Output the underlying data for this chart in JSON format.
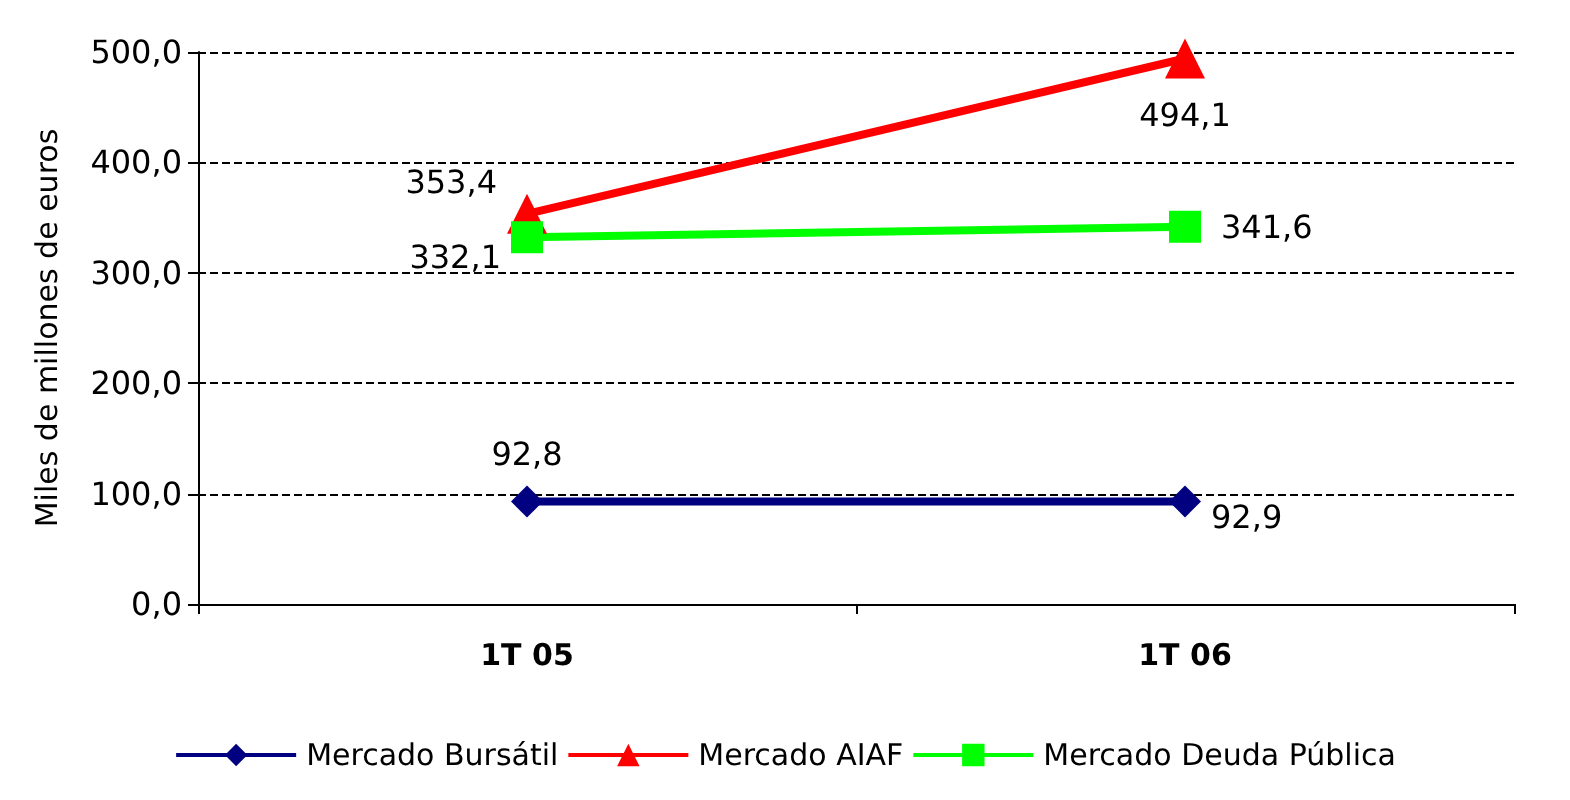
{
  "chart_data": {
    "type": "line",
    "ylabel": "Miles de millones de euros",
    "categories": [
      "1T 05",
      "1T 06"
    ],
    "ylim": [
      0,
      500
    ],
    "yticks": [
      {
        "value": 0,
        "label": "0,0"
      },
      {
        "value": 100,
        "label": "100,0"
      },
      {
        "value": 200,
        "label": "200,0"
      },
      {
        "value": 300,
        "label": "300,0"
      },
      {
        "value": 400,
        "label": "400,0"
      },
      {
        "value": 500,
        "label": "500,0"
      }
    ],
    "grid": "y",
    "legend": "bottom",
    "series": [
      {
        "name": "Mercado Bursátil",
        "color": "#000080",
        "marker": "diamond",
        "values": [
          92.8,
          92.9
        ],
        "value_labels": [
          "92,8",
          "92,9"
        ]
      },
      {
        "name": "Mercado AIAF",
        "color": "#ff0000",
        "marker": "triangle",
        "values": [
          353.4,
          494.1
        ],
        "value_labels": [
          "353,4",
          "494,1"
        ]
      },
      {
        "name": "Mercado Deuda Pública",
        "color": "#00ff00",
        "marker": "square",
        "values": [
          332.1,
          341.6
        ],
        "value_labels": [
          "332,1",
          "341,6"
        ]
      }
    ]
  }
}
